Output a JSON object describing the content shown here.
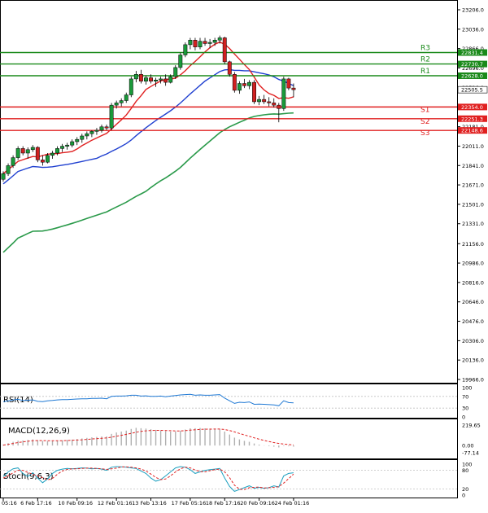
{
  "chart_data": {
    "type": "candlestick",
    "main": {
      "y_ticks": [
        23206.0,
        23036.0,
        22866.0,
        22696.0,
        22526.0,
        22356.0,
        22181.0,
        22011.0,
        21841.0,
        21671.0,
        21501.0,
        21331.0,
        21156.0,
        20986.0,
        20816.0,
        20646.0,
        20476.0,
        20306.0,
        20136.0,
        19966.0
      ],
      "y_tick_labels": [
        "23206.0",
        "23036.0",
        "22866.0",
        "22696.0",
        "22526.0",
        "22356.0",
        "22181.0",
        "22011.0",
        "21841.0",
        "21671.0",
        "21501.0",
        "21331.0",
        "21156.0",
        "20986.0",
        "20816.0",
        "20646.0",
        "20476.0",
        "20306.0",
        "20136.0",
        "19966.0"
      ],
      "levels": [
        {
          "name": "R3",
          "value": 22831.4,
          "label": "22831.4",
          "color": "#1a8a1a"
        },
        {
          "name": "R2",
          "value": 22730.7,
          "label": "22730.7",
          "color": "#1a8a1a"
        },
        {
          "name": "R1",
          "value": 22628.0,
          "label": "22628.0",
          "color": "#1a8a1a"
        },
        {
          "name": "S1",
          "value": 22354.0,
          "label": "22354.0",
          "color": "#e02020"
        },
        {
          "name": "S2",
          "value": 22251.3,
          "label": "22251.3",
          "color": "#e02020"
        },
        {
          "name": "S3",
          "value": 22148.6,
          "label": "22148.6",
          "color": "#e02020"
        }
      ],
      "current_price": {
        "value": 22505.5,
        "label": "22505.5"
      },
      "candles": [
        {
          "o": 21720,
          "h": 21790,
          "l": 21700,
          "c": 21770
        },
        {
          "o": 21770,
          "h": 21860,
          "l": 21750,
          "c": 21840
        },
        {
          "o": 21840,
          "h": 21930,
          "l": 21820,
          "c": 21910
        },
        {
          "o": 21910,
          "h": 22010,
          "l": 21890,
          "c": 21990
        },
        {
          "o": 21990,
          "h": 22010,
          "l": 21930,
          "c": 21950
        },
        {
          "o": 21950,
          "h": 22000,
          "l": 21900,
          "c": 21980
        },
        {
          "o": 21980,
          "h": 22020,
          "l": 21960,
          "c": 22000
        },
        {
          "o": 22000,
          "h": 22010,
          "l": 21870,
          "c": 21890
        },
        {
          "o": 21890,
          "h": 21930,
          "l": 21840,
          "c": 21870
        },
        {
          "o": 21870,
          "h": 21950,
          "l": 21860,
          "c": 21930
        },
        {
          "o": 21930,
          "h": 21970,
          "l": 21900,
          "c": 21950
        },
        {
          "o": 21950,
          "h": 22010,
          "l": 21930,
          "c": 21990
        },
        {
          "o": 21990,
          "h": 22030,
          "l": 21960,
          "c": 22010
        },
        {
          "o": 22010,
          "h": 22040,
          "l": 21980,
          "c": 22020
        },
        {
          "o": 22020,
          "h": 22070,
          "l": 22000,
          "c": 22050
        },
        {
          "o": 22050,
          "h": 22090,
          "l": 22020,
          "c": 22070
        },
        {
          "o": 22070,
          "h": 22120,
          "l": 22040,
          "c": 22100
        },
        {
          "o": 22100,
          "h": 22140,
          "l": 22070,
          "c": 22120
        },
        {
          "o": 22120,
          "h": 22150,
          "l": 22090,
          "c": 22140
        },
        {
          "o": 22140,
          "h": 22170,
          "l": 22110,
          "c": 22150
        },
        {
          "o": 22150,
          "h": 22200,
          "l": 22130,
          "c": 22180
        },
        {
          "o": 22180,
          "h": 22200,
          "l": 22150,
          "c": 22170
        },
        {
          "o": 22170,
          "h": 22390,
          "l": 22150,
          "c": 22370
        },
        {
          "o": 22370,
          "h": 22410,
          "l": 22340,
          "c": 22390
        },
        {
          "o": 22390,
          "h": 22430,
          "l": 22360,
          "c": 22410
        },
        {
          "o": 22410,
          "h": 22480,
          "l": 22390,
          "c": 22460
        },
        {
          "o": 22460,
          "h": 22620,
          "l": 22440,
          "c": 22600
        },
        {
          "o": 22600,
          "h": 22670,
          "l": 22570,
          "c": 22640
        },
        {
          "o": 22640,
          "h": 22680,
          "l": 22560,
          "c": 22580
        },
        {
          "o": 22580,
          "h": 22630,
          "l": 22550,
          "c": 22610
        },
        {
          "o": 22610,
          "h": 22640,
          "l": 22560,
          "c": 22580
        },
        {
          "o": 22580,
          "h": 22610,
          "l": 22530,
          "c": 22590
        },
        {
          "o": 22590,
          "h": 22620,
          "l": 22560,
          "c": 22600
        },
        {
          "o": 22600,
          "h": 22640,
          "l": 22540,
          "c": 22570
        },
        {
          "o": 22570,
          "h": 22640,
          "l": 22560,
          "c": 22620
        },
        {
          "o": 22620,
          "h": 22720,
          "l": 22600,
          "c": 22700
        },
        {
          "o": 22700,
          "h": 22830,
          "l": 22680,
          "c": 22810
        },
        {
          "o": 22810,
          "h": 22920,
          "l": 22790,
          "c": 22900
        },
        {
          "o": 22900,
          "h": 22960,
          "l": 22860,
          "c": 22940
        },
        {
          "o": 22940,
          "h": 22960,
          "l": 22850,
          "c": 22880
        },
        {
          "o": 22880,
          "h": 22960,
          "l": 22860,
          "c": 22930
        },
        {
          "o": 22930,
          "h": 22960,
          "l": 22890,
          "c": 22910
        },
        {
          "o": 22910,
          "h": 22950,
          "l": 22870,
          "c": 22920
        },
        {
          "o": 22920,
          "h": 22960,
          "l": 22890,
          "c": 22940
        },
        {
          "o": 22940,
          "h": 22980,
          "l": 22910,
          "c": 22960
        },
        {
          "o": 22960,
          "h": 22970,
          "l": 22730,
          "c": 22750
        },
        {
          "o": 22750,
          "h": 22760,
          "l": 22620,
          "c": 22640
        },
        {
          "o": 22640,
          "h": 22660,
          "l": 22480,
          "c": 22500
        },
        {
          "o": 22500,
          "h": 22580,
          "l": 22470,
          "c": 22560
        },
        {
          "o": 22560,
          "h": 22600,
          "l": 22520,
          "c": 22540
        },
        {
          "o": 22540,
          "h": 22590,
          "l": 22510,
          "c": 22570
        },
        {
          "o": 22570,
          "h": 22590,
          "l": 22380,
          "c": 22400
        },
        {
          "o": 22400,
          "h": 22450,
          "l": 22370,
          "c": 22420
        },
        {
          "o": 22420,
          "h": 22460,
          "l": 22380,
          "c": 22400
        },
        {
          "o": 22400,
          "h": 22440,
          "l": 22360,
          "c": 22390
        },
        {
          "o": 22390,
          "h": 22430,
          "l": 22350,
          "c": 22370
        },
        {
          "o": 22370,
          "h": 22390,
          "l": 22220,
          "c": 22340
        },
        {
          "o": 22340,
          "h": 22620,
          "l": 22320,
          "c": 22600
        },
        {
          "o": 22600,
          "h": 22610,
          "l": 22500,
          "c": 22520
        },
        {
          "o": 22520,
          "h": 22560,
          "l": 22440,
          "c": 22505.5
        }
      ],
      "ma_fast_color": "#e02020",
      "ma_mid_color": "#2040d0",
      "ma_slow_color": "#2a9a4a"
    },
    "x_ticks": [
      {
        "label": "05:16",
        "index": 0
      },
      {
        "label": "6 Feb 17:16",
        "index": 7
      },
      {
        "label": "10 Feb 09:16",
        "index": 15
      },
      {
        "label": "12 Feb 01:16",
        "index": 23
      },
      {
        "label": "13 Feb 13:16",
        "index": 30
      },
      {
        "label": "17 Feb 05:16",
        "index": 38
      },
      {
        "label": "18 Feb 17:16",
        "index": 45
      },
      {
        "label": "20 Feb 09:16",
        "index": 52
      },
      {
        "label": "24 Feb 01:16",
        "index": 59
      }
    ],
    "rsi": {
      "label": "RSI(14)",
      "levels": [
        100,
        70,
        30,
        0
      ],
      "level_labels": [
        "100",
        "70",
        "30",
        "0"
      ],
      "color": "#1e78d4",
      "values": [
        52,
        55,
        58,
        60,
        56,
        57,
        58,
        53,
        52,
        55,
        56,
        58,
        59,
        59,
        60,
        61,
        62,
        62,
        63,
        63,
        64,
        62,
        70,
        71,
        71,
        72,
        74,
        74,
        71,
        72,
        70,
        70,
        71,
        69,
        71,
        73,
        75,
        76,
        77,
        74,
        75,
        74,
        74,
        75,
        76,
        64,
        55,
        46,
        50,
        49,
        51,
        43,
        44,
        43,
        42,
        41,
        38,
        55,
        49,
        48
      ]
    },
    "macd": {
      "label": "MACD(12,26,9)",
      "levels": [
        219.65,
        0.0,
        -77.14
      ],
      "level_labels": [
        "219.65",
        "0.00",
        "-77.14"
      ],
      "hist_color": "#b0b0b0",
      "signal_color": "#e02020",
      "hist": [
        10,
        25,
        40,
        52,
        55,
        60,
        66,
        58,
        48,
        46,
        48,
        52,
        56,
        60,
        64,
        70,
        76,
        82,
        88,
        92,
        97,
        98,
        125,
        140,
        150,
        160,
        178,
        190,
        186,
        182,
        175,
        168,
        162,
        155,
        150,
        150,
        158,
        172,
        185,
        186,
        188,
        185,
        182,
        180,
        178,
        150,
        118,
        85,
        66,
        50,
        40,
        22,
        10,
        2,
        -6,
        -12,
        -20,
        -5,
        -8,
        -12
      ],
      "signal": [
        5,
        12,
        22,
        32,
        40,
        46,
        52,
        54,
        53,
        52,
        51,
        51,
        52,
        54,
        56,
        59,
        62,
        66,
        70,
        74,
        78,
        82,
        90,
        100,
        110,
        120,
        131,
        143,
        152,
        158,
        162,
        163,
        163,
        161,
        159,
        157,
        157,
        160,
        165,
        169,
        173,
        175,
        176,
        177,
        177,
        172,
        161,
        146,
        130,
        114,
        99,
        83,
        69,
        55,
        43,
        32,
        22,
        16,
        11,
        6
      ]
    },
    "stoch": {
      "label": "Stoch(9,6,3)",
      "levels": [
        100,
        80,
        20,
        0
      ],
      "level_labels": [
        "100",
        "80",
        "20",
        "0"
      ],
      "k_color": "#1ea0c0",
      "d_color": "#e02020",
      "k": [
        60,
        75,
        85,
        88,
        70,
        60,
        72,
        55,
        40,
        52,
        70,
        80,
        84,
        86,
        85,
        86,
        88,
        87,
        85,
        86,
        84,
        80,
        90,
        92,
        91,
        90,
        88,
        86,
        78,
        70,
        55,
        45,
        50,
        62,
        75,
        88,
        92,
        90,
        82,
        70,
        75,
        80,
        82,
        84,
        86,
        55,
        28,
        12,
        18,
        24,
        30,
        22,
        25,
        22,
        24,
        30,
        26,
        62,
        70,
        72
      ],
      "d": [
        55,
        62,
        72,
        80,
        80,
        73,
        67,
        62,
        56,
        49,
        54,
        67,
        78,
        83,
        85,
        85,
        86,
        87,
        87,
        86,
        85,
        83,
        85,
        87,
        91,
        91,
        90,
        88,
        84,
        78,
        68,
        57,
        50,
        52,
        62,
        75,
        85,
        90,
        88,
        81,
        76,
        75,
        79,
        82,
        84,
        75,
        56,
        32,
        19,
        18,
        24,
        25,
        26,
        23,
        24,
        25,
        27,
        39,
        53,
        68
      ]
    }
  }
}
